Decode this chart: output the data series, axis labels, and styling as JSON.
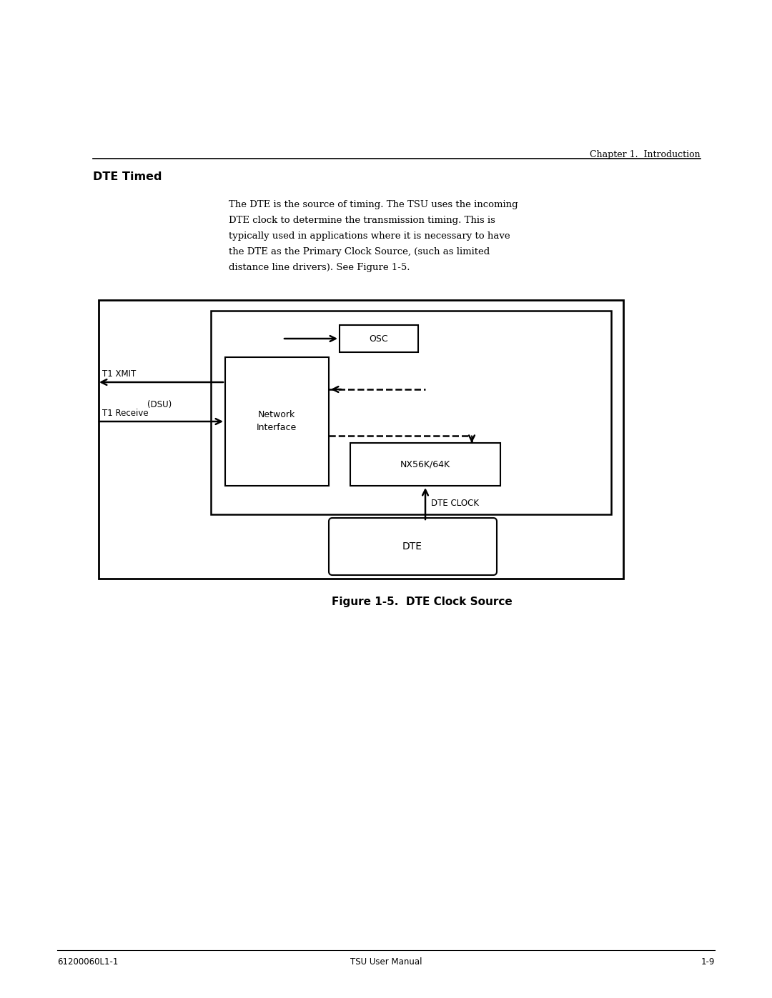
{
  "page_title": "Chapter 1.  Introduction",
  "section_title": "DTE Timed",
  "body_line1": "The DTE is the source of timing. The TSU uses the incoming",
  "body_line2": "DTE clock to determine the transmission timing. This is",
  "body_line3": "typically used in applications where it is necessary to have",
  "body_line4": "the DTE as the Primary Clock Source, (such as limited",
  "body_line5": "distance line drivers). See Figure 1-5.",
  "figure_caption": "Figure 1-5.  DTE Clock Source",
  "footer_left": "61200060L1-1",
  "footer_center": "TSU User Manual",
  "footer_right": "1-9",
  "bg_color": "#ffffff",
  "text_color": "#000000"
}
